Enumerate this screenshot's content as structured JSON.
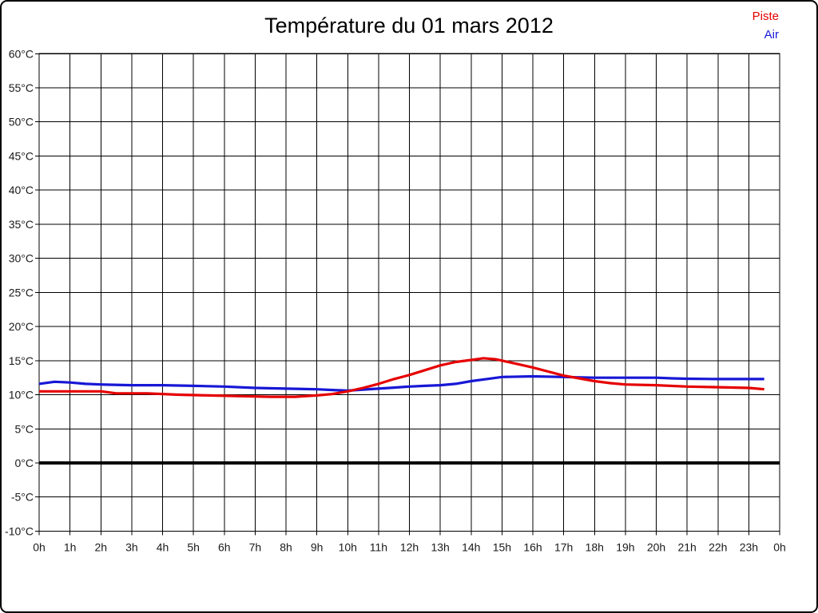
{
  "chart_data": {
    "type": "line",
    "title": "Température du 01 mars 2012",
    "grid": true,
    "legend_position": "top-right",
    "x_axis": {
      "min": 0,
      "max": 24,
      "unit": "h",
      "tick_labels": [
        "0h",
        "1h",
        "2h",
        "3h",
        "4h",
        "5h",
        "6h",
        "7h",
        "8h",
        "9h",
        "10h",
        "11h",
        "12h",
        "13h",
        "14h",
        "15h",
        "16h",
        "17h",
        "18h",
        "19h",
        "20h",
        "21h",
        "22h",
        "23h",
        "0h"
      ]
    },
    "y_axis": {
      "min": -10,
      "max": 60,
      "step": 5,
      "unit": "°C",
      "tick_labels": [
        "60°C",
        "55°C",
        "50°C",
        "45°C",
        "40°C",
        "35°C",
        "30°C",
        "25°C",
        "20°C",
        "15°C",
        "10°C",
        "5°C",
        "0°C",
        "-5°C",
        "-10°C"
      ],
      "zero_line": true
    },
    "series": [
      {
        "name": "Piste",
        "color": "#e60000",
        "points": [
          [
            0,
            10.5
          ],
          [
            1,
            10.5
          ],
          [
            2,
            10.5
          ],
          [
            2.5,
            10.2
          ],
          [
            3.5,
            10.2
          ],
          [
            4.5,
            10.0
          ],
          [
            5.5,
            9.9
          ],
          [
            6.5,
            9.8
          ],
          [
            7.5,
            9.7
          ],
          [
            8.3,
            9.7
          ],
          [
            9,
            9.9
          ],
          [
            9.5,
            10.1
          ],
          [
            10,
            10.5
          ],
          [
            10.5,
            11.0
          ],
          [
            11,
            11.6
          ],
          [
            11.5,
            12.3
          ],
          [
            12,
            12.9
          ],
          [
            12.5,
            13.6
          ],
          [
            13,
            14.3
          ],
          [
            13.5,
            14.8
          ],
          [
            14,
            15.1
          ],
          [
            14.4,
            15.35
          ],
          [
            14.8,
            15.2
          ],
          [
            15,
            15.0
          ],
          [
            15.5,
            14.5
          ],
          [
            16,
            14.0
          ],
          [
            16.5,
            13.4
          ],
          [
            17,
            12.8
          ],
          [
            17.5,
            12.4
          ],
          [
            18,
            12.0
          ],
          [
            18.5,
            11.7
          ],
          [
            19,
            11.5
          ],
          [
            20,
            11.4
          ],
          [
            21,
            11.2
          ],
          [
            22,
            11.1
          ],
          [
            23,
            11.0
          ],
          [
            23.5,
            10.8
          ]
        ]
      },
      {
        "name": "Air",
        "color": "#1717d6",
        "points": [
          [
            0,
            11.6
          ],
          [
            0.5,
            11.9
          ],
          [
            1,
            11.8
          ],
          [
            1.5,
            11.6
          ],
          [
            2,
            11.5
          ],
          [
            3,
            11.4
          ],
          [
            4,
            11.4
          ],
          [
            5,
            11.3
          ],
          [
            6,
            11.2
          ],
          [
            7,
            11.0
          ],
          [
            8,
            10.9
          ],
          [
            9,
            10.8
          ],
          [
            9.5,
            10.7
          ],
          [
            10,
            10.6
          ],
          [
            10.5,
            10.75
          ],
          [
            11,
            10.9
          ],
          [
            11.5,
            11.05
          ],
          [
            12,
            11.2
          ],
          [
            12.5,
            11.3
          ],
          [
            13,
            11.4
          ],
          [
            13.5,
            11.6
          ],
          [
            14,
            12.0
          ],
          [
            14.5,
            12.3
          ],
          [
            15,
            12.6
          ],
          [
            16,
            12.7
          ],
          [
            17,
            12.6
          ],
          [
            18,
            12.5
          ],
          [
            19,
            12.5
          ],
          [
            20,
            12.5
          ],
          [
            20.5,
            12.4
          ],
          [
            21,
            12.35
          ],
          [
            22,
            12.3
          ],
          [
            23.5,
            12.3
          ]
        ]
      }
    ]
  }
}
